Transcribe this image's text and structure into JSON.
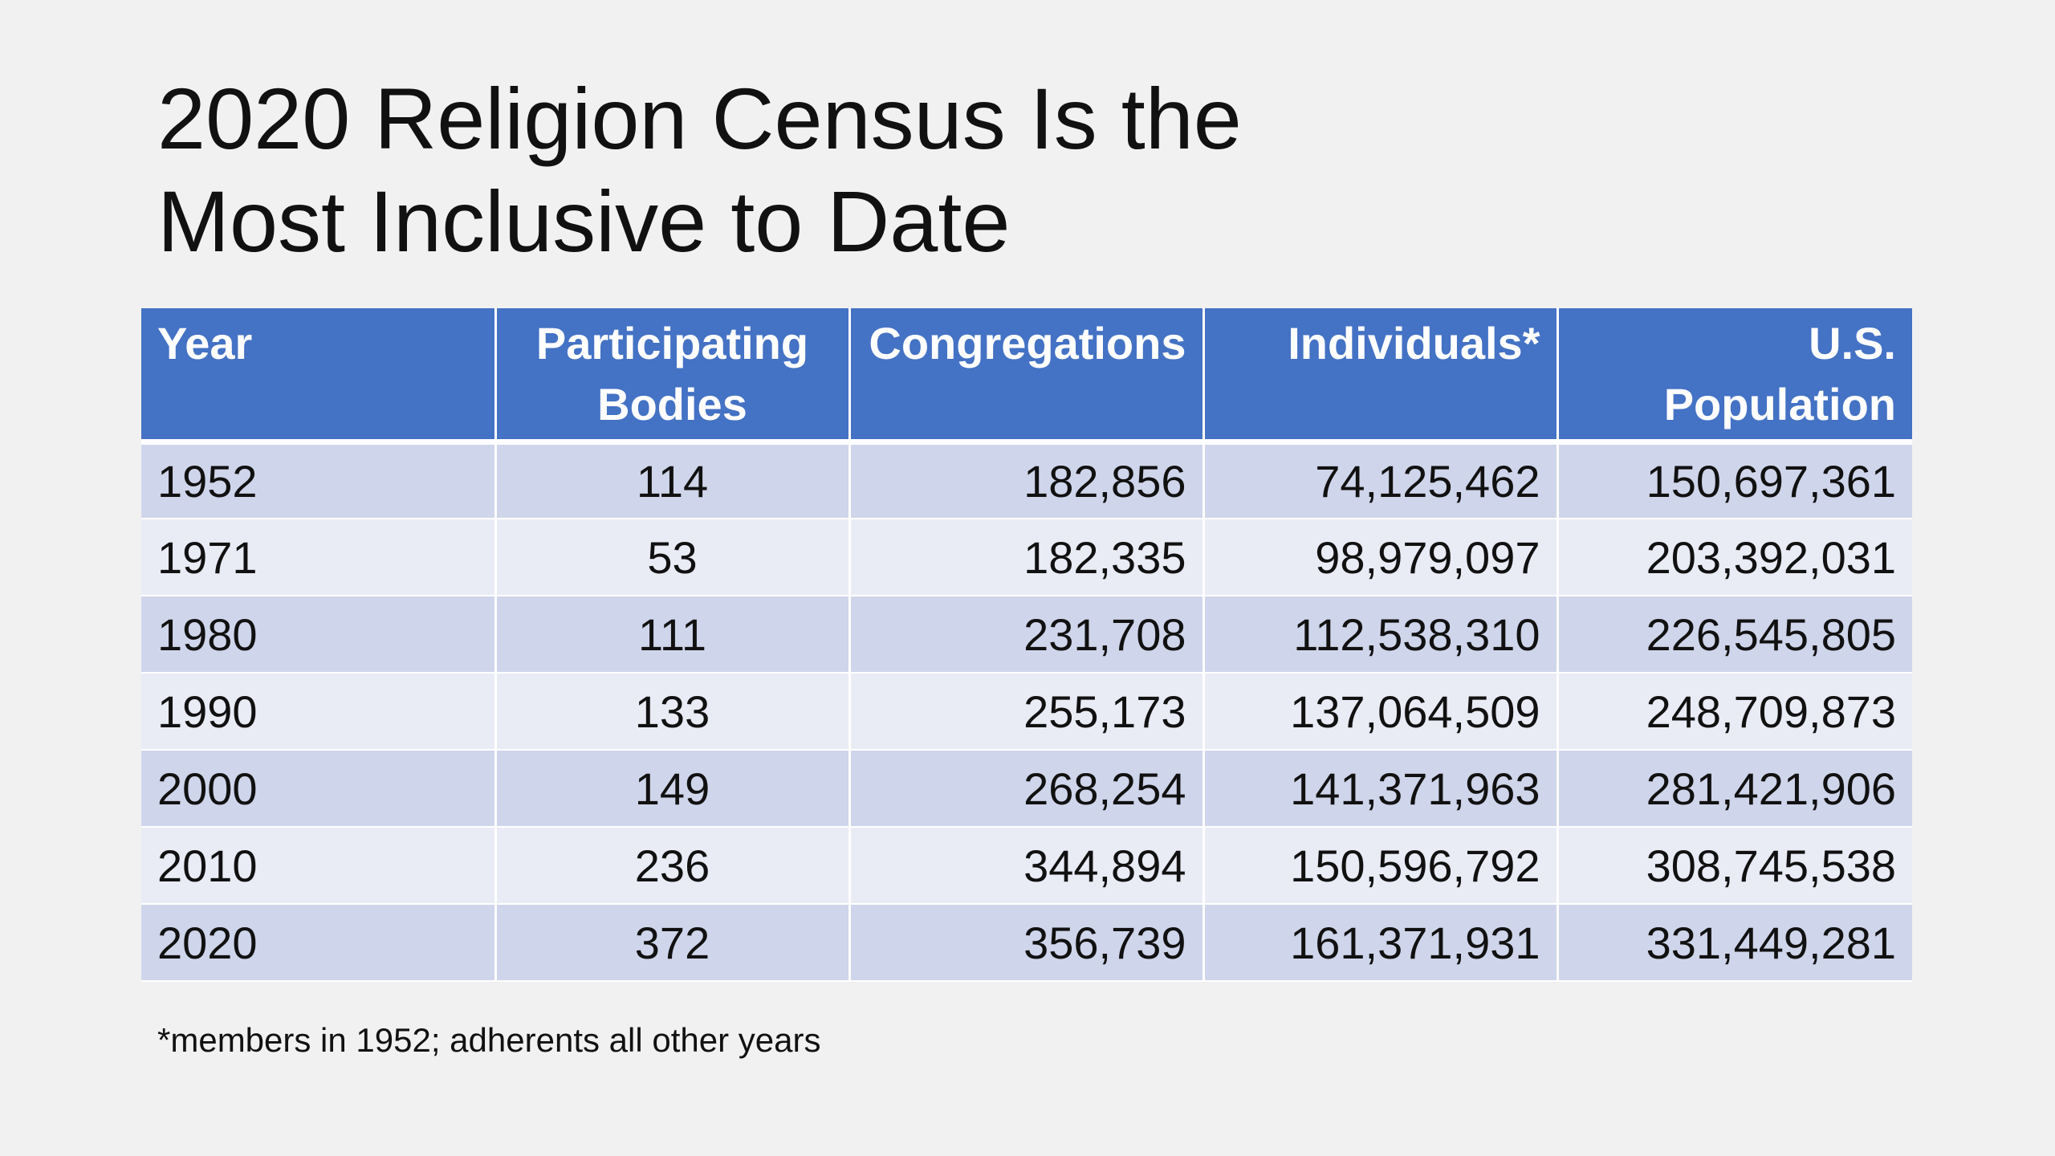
{
  "slide": {
    "title_line1": "2020 Religion Census Is the",
    "title_line2": "Most Inclusive to Date",
    "footnote": "*members in 1952; adherents all other years"
  },
  "table": {
    "headers": [
      {
        "line1": "Year",
        "line2": "",
        "align": "left"
      },
      {
        "line1": "Participating",
        "line2": "Bodies",
        "align": "center"
      },
      {
        "line1": "Congregations",
        "line2": "",
        "align": "right"
      },
      {
        "line1": "Individuals*",
        "line2": "",
        "align": "right"
      },
      {
        "line1": "U.S.",
        "line2": "Population",
        "align": "right"
      }
    ],
    "rows": [
      [
        "1952",
        "114",
        "182,856",
        "74,125,462",
        "150,697,361"
      ],
      [
        "1971",
        "53",
        "182,335",
        "98,979,097",
        "203,392,031"
      ],
      [
        "1980",
        "111",
        "231,708",
        "112,538,310",
        "226,545,805"
      ],
      [
        "1990",
        "133",
        "255,173",
        "137,064,509",
        "248,709,873"
      ],
      [
        "2000",
        "149",
        "268,254",
        "141,371,963",
        "281,421,906"
      ],
      [
        "2010",
        "236",
        "344,894",
        "150,596,792",
        "308,745,538"
      ],
      [
        "2020",
        "372",
        "356,739",
        "161,371,931",
        "331,449,281"
      ]
    ]
  },
  "colors": {
    "background": "#f1f1f1",
    "header": "#4472c4",
    "row_dark": "#cfd5ea",
    "row_light": "#e9ebf5",
    "text": "#111111"
  }
}
